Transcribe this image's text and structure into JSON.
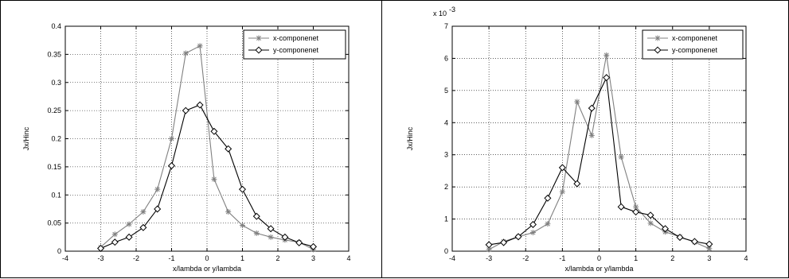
{
  "chart_data": [
    {
      "type": "line",
      "xlabel": "x/lambda or y/lambda",
      "ylabel": "Jx/Hinc",
      "xlim": [
        -4,
        4
      ],
      "ylim": [
        0,
        0.4
      ],
      "xticks": [
        -4,
        -3,
        -2,
        -1,
        0,
        1,
        2,
        3,
        4
      ],
      "yticks": [
        0,
        0.05,
        0.1,
        0.15,
        0.2,
        0.25,
        0.3,
        0.35,
        0.4
      ],
      "xtick_labels": [
        "-4",
        "-3",
        "-2",
        "-1",
        "0",
        "1",
        "2",
        "3",
        "4"
      ],
      "ytick_labels": [
        "0",
        "0.05",
        "0.1",
        "0.15",
        "0.2",
        "0.25",
        "0.3",
        "0.35",
        "0.4"
      ],
      "exponent_label": "",
      "grid": true,
      "legend_position": "top-right",
      "series": [
        {
          "name": "x-componenet",
          "color": "#808080",
          "marker": "star",
          "x": [
            -3,
            -2.6,
            -2.2,
            -1.8,
            -1.4,
            -1,
            -0.6,
            -0.2,
            0.2,
            0.6,
            1,
            1.4,
            1.8,
            2.2,
            2.6,
            3
          ],
          "y": [
            0.007,
            0.03,
            0.048,
            0.07,
            0.11,
            0.2,
            0.352,
            0.365,
            0.128,
            0.07,
            0.046,
            0.032,
            0.025,
            0.02,
            0.016,
            0.003
          ]
        },
        {
          "name": "y-componenet",
          "color": "#000000",
          "marker": "diamond",
          "x": [
            -3,
            -2.6,
            -2.2,
            -1.8,
            -1.4,
            -1,
            -0.6,
            -0.2,
            0.2,
            0.6,
            1,
            1.4,
            1.8,
            2.2,
            2.6,
            3
          ],
          "y": [
            0.005,
            0.016,
            0.025,
            0.042,
            0.075,
            0.152,
            0.25,
            0.26,
            0.213,
            0.182,
            0.11,
            0.062,
            0.04,
            0.025,
            0.015,
            0.008
          ]
        }
      ]
    },
    {
      "type": "line",
      "xlabel": "x/lambda or y/lambda",
      "ylabel": "Jx/Hinc",
      "xlim": [
        -4,
        4
      ],
      "ylim": [
        0,
        7
      ],
      "xticks": [
        -4,
        -3,
        -2,
        -1,
        0,
        1,
        2,
        3,
        4
      ],
      "yticks": [
        0,
        1,
        2,
        3,
        4,
        5,
        6,
        7
      ],
      "xtick_labels": [
        "-4",
        "-3",
        "-2",
        "-1",
        "0",
        "1",
        "2",
        "3",
        "4"
      ],
      "ytick_labels": [
        "0",
        "1",
        "2",
        "3",
        "4",
        "5",
        "6",
        "7"
      ],
      "exponent_label": "x 10",
      "exponent_power": "-3",
      "grid": true,
      "legend_position": "top-right",
      "series": [
        {
          "name": "x-componenet",
          "color": "#808080",
          "marker": "star",
          "x": [
            -3,
            -2.6,
            -2.2,
            -1.8,
            -1.4,
            -1,
            -0.6,
            -0.2,
            0.2,
            0.6,
            1,
            1.4,
            1.8,
            2.2,
            2.6,
            3
          ],
          "y": [
            0.05,
            0.3,
            0.45,
            0.58,
            0.85,
            1.85,
            4.65,
            3.6,
            6.1,
            2.93,
            1.38,
            0.87,
            0.6,
            0.45,
            0.28,
            0.08
          ]
        },
        {
          "name": "y-componenet",
          "color": "#000000",
          "marker": "diamond",
          "x": [
            -3,
            -2.6,
            -2.2,
            -1.8,
            -1.4,
            -1,
            -0.6,
            -0.2,
            0.2,
            0.6,
            1,
            1.4,
            1.8,
            2.2,
            2.6,
            3
          ],
          "y": [
            0.2,
            0.27,
            0.45,
            0.83,
            1.65,
            2.6,
            2.1,
            4.45,
            5.4,
            1.38,
            1.22,
            1.12,
            0.7,
            0.43,
            0.3,
            0.22
          ]
        }
      ]
    }
  ]
}
